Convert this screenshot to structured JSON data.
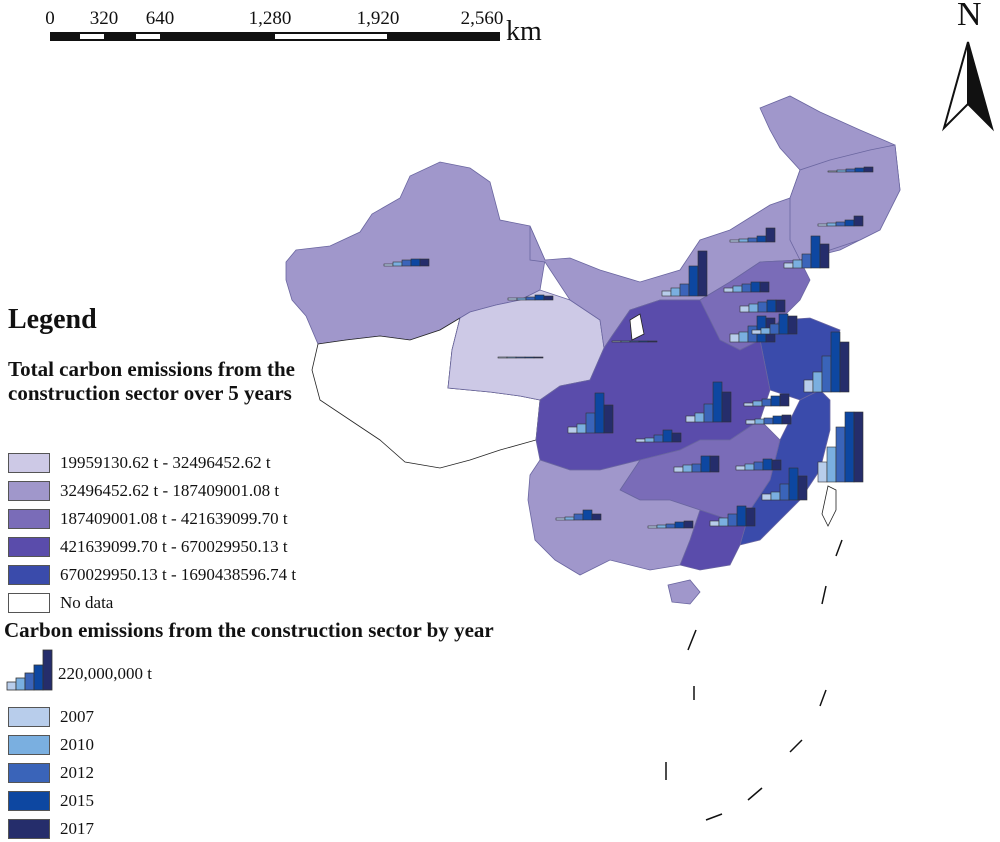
{
  "scale_bar": {
    "ticks": [
      "0",
      "320",
      "640",
      "1,280",
      "1,920",
      "2,560"
    ],
    "unit": "km"
  },
  "north_arrow": {
    "label": "N"
  },
  "legend": {
    "title": "Legend",
    "choropleth_title": "Total carbon emissions from the construction sector over 5 years",
    "classes": [
      {
        "label": "19959130.62 t - 32496452.62 t",
        "color": "#cdc9e6"
      },
      {
        "label": "32496452.62 t - 187409001.08 t",
        "color": "#a097cb"
      },
      {
        "label": "187409001.08 t - 421639099.70 t",
        "color": "#7a6cb8"
      },
      {
        "label": "421639099.70 t - 670029950.13 t",
        "color": "#5a4cab"
      },
      {
        "label": "670029950.13 t - 1690438596.74 t",
        "color": "#3a4bab"
      },
      {
        "label": "No data",
        "color": "#ffffff"
      }
    ],
    "bars_title": "Carbon emissions from the construction sector by year",
    "bar_sample_label": "220,000,000 t",
    "years": [
      {
        "label": "2007",
        "color": "#b8cdeb"
      },
      {
        "label": "2010",
        "color": "#7aafe0"
      },
      {
        "label": "2012",
        "color": "#3a64b9"
      },
      {
        "label": "2015",
        "color": "#0d47a1"
      },
      {
        "label": "2017",
        "color": "#252d6b"
      }
    ]
  }
}
